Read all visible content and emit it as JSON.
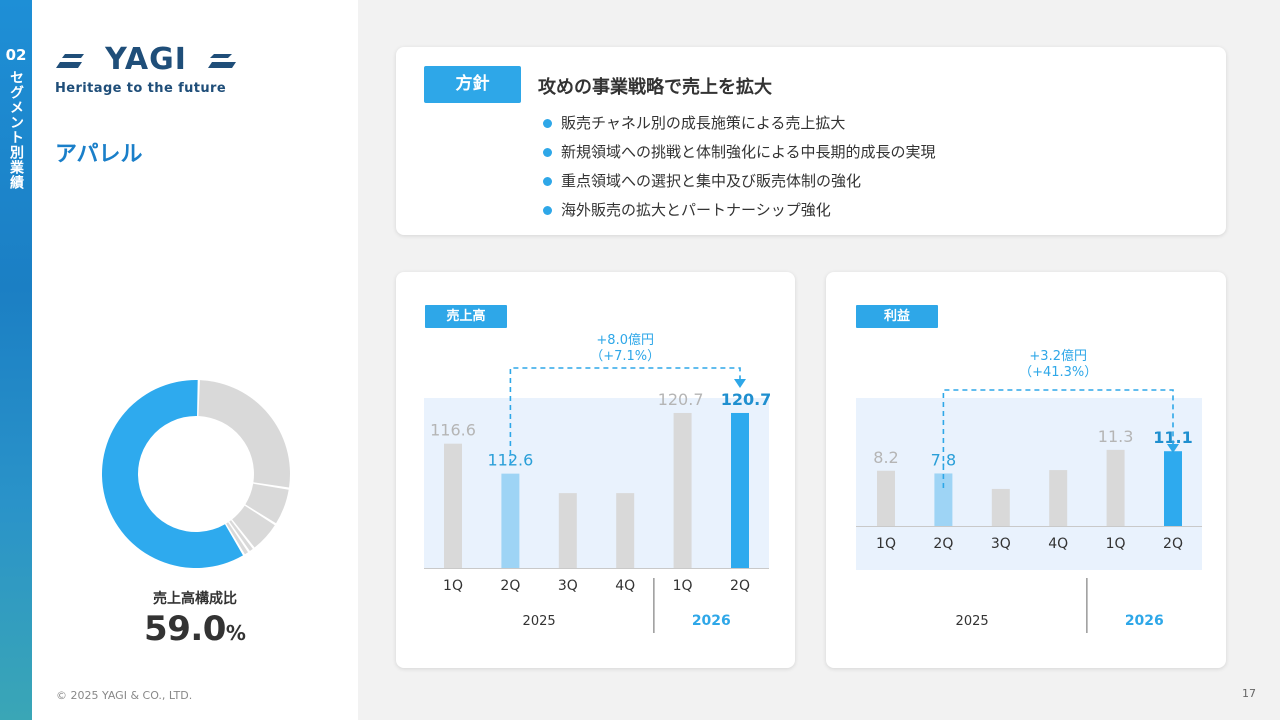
{
  "section": {
    "number": "02",
    "vertical_label": "セグメント別業績",
    "title": "アパレル"
  },
  "brand": {
    "logo_text": "YAGI",
    "tagline": "Heritage to the future"
  },
  "composition": {
    "label": "売上高構成比",
    "value": "59.0",
    "unit": "%",
    "share": 59.0,
    "other_segments": [
      27.0,
      6.5,
      5.5,
      1.0,
      1.0
    ],
    "colors": {
      "highlight": "#2eaaee",
      "others": "#d9d9d9"
    }
  },
  "policy": {
    "badge": "方針",
    "heading": "攻めの事業戦略で売上を拡大",
    "items": [
      "販売チャネル別の成長施策による売上拡大",
      "新規領域への挑戦と体制強化による中長期的成長の実現",
      "重点領域への選択と集中及び販売体制の強化",
      "海外販売の拡大とパートナーシップ強化"
    ]
  },
  "colors": {
    "accent": "#2ea7e8",
    "current_bar": "#2eaaee",
    "prev_bar_light": "#9ed4f5",
    "grey_bar": "#d9d9d9",
    "plot_bg": "#e9f2fd"
  },
  "chart_data": [
    {
      "type": "bar",
      "badge": "売上高",
      "categories": [
        "1Q",
        "2Q",
        "3Q",
        "4Q",
        "1Q",
        "2Q"
      ],
      "year_groups": [
        {
          "label": "2025",
          "span": 4
        },
        {
          "label": "2026",
          "span": 2
        }
      ],
      "values": [
        116.6,
        112.6,
        110.0,
        110.0,
        120.7,
        120.7
      ],
      "labels": [
        "116.6",
        "112.6",
        "",
        "",
        "120.7",
        "120.7"
      ],
      "highlight_current": 5,
      "highlight_prev": 1,
      "ylim": [
        100,
        123.5
      ],
      "comparison": {
        "line1": "+8.0億円",
        "line2": "（+7.1%）",
        "from": 1,
        "to": 5
      }
    },
    {
      "type": "bar",
      "badge": "利益",
      "categories": [
        "1Q",
        "2Q",
        "3Q",
        "4Q",
        "1Q",
        "2Q"
      ],
      "year_groups": [
        {
          "label": "2025",
          "span": 4
        },
        {
          "label": "2026",
          "span": 2
        }
      ],
      "values": [
        8.2,
        7.8,
        5.5,
        8.3,
        11.3,
        11.1
      ],
      "labels": [
        "8.2",
        "7.8",
        "",
        "",
        "11.3",
        "11.1"
      ],
      "highlight_current": 5,
      "highlight_prev": 1,
      "ylim": [
        0,
        19
      ],
      "comparison": {
        "line1": "+3.2億円",
        "line2": "（+41.3%）",
        "from": 1,
        "to": 5
      }
    }
  ],
  "footer": {
    "copyright": "© 2025 YAGI & CO., LTD.",
    "page": "17"
  }
}
